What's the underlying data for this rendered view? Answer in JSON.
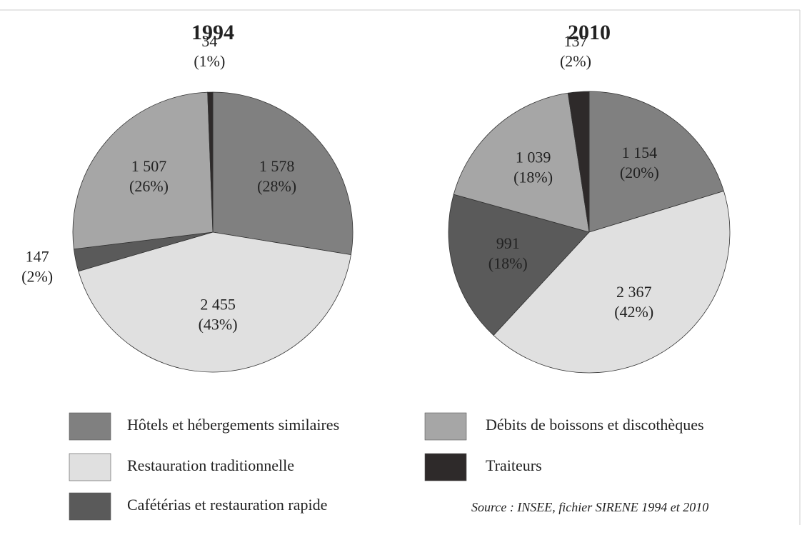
{
  "chart_data": [
    {
      "type": "pie",
      "title": "1994",
      "categories": [
        "Hôtels et hébergements similaires",
        "Restauration traditionnelle",
        "Cafétérias et restauration rapide",
        "Débits de boissons et discothèques",
        "Traiteurs"
      ],
      "colors": [
        "#808080",
        "#e0e0e0",
        "#5a5a5a",
        "#a6a6a6",
        "#2e2a2a"
      ],
      "values": [
        1578,
        2455,
        147,
        1507,
        34
      ],
      "value_labels": [
        "1 578",
        "2 455",
        "147",
        "1 507",
        "34"
      ],
      "percent_labels": [
        "(28%)",
        "(43%)",
        "(2%)",
        "(26%)",
        "(1%)"
      ]
    },
    {
      "type": "pie",
      "title": "2010",
      "categories": [
        "Hôtels et hébergements similaires",
        "Restauration traditionnelle",
        "Cafétérias et restauration rapide",
        "Débits de boissons et discothèques",
        "Traiteurs"
      ],
      "colors": [
        "#808080",
        "#e0e0e0",
        "#5a5a5a",
        "#a6a6a6",
        "#2e2a2a"
      ],
      "values": [
        1154,
        2367,
        991,
        1039,
        137
      ],
      "value_labels": [
        "1 154",
        "2 367",
        "991",
        "1 039",
        "137"
      ],
      "percent_labels": [
        "(20%)",
        "(42%)",
        "(18%)",
        "(18%)",
        "(2%)"
      ]
    }
  ],
  "source": "Source : INSEE, fichier SIRENE 1994 et 2010"
}
